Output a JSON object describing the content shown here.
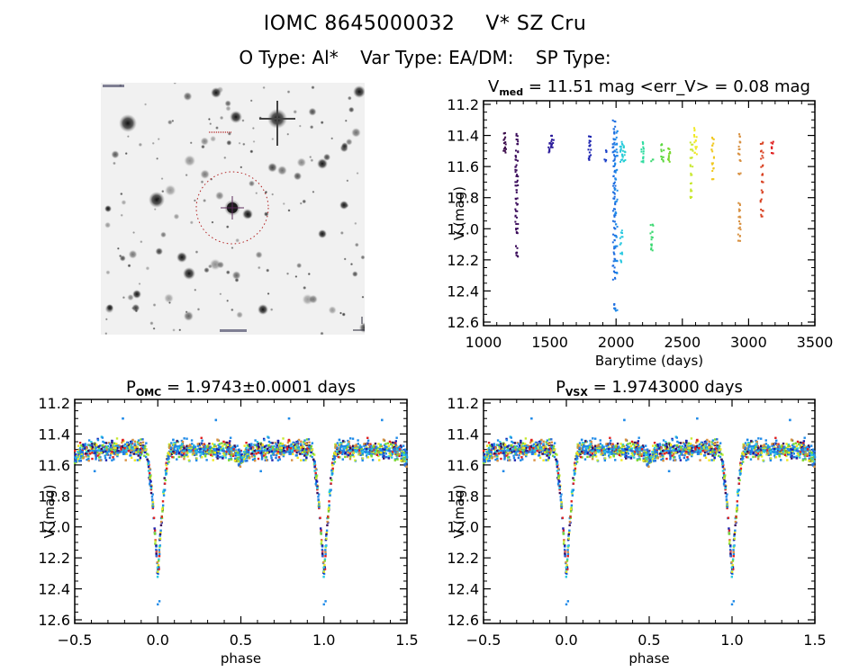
{
  "header": {
    "object_id": "IOMC 8645000032",
    "object_name": "V* SZ Cru",
    "o_type_label": "O Type:",
    "o_type_value": "Al*",
    "var_type_label": "Var Type:",
    "var_type_value": "EA/DM:",
    "sp_type_label": "SP Type:",
    "sp_type_value": ""
  },
  "sky_image": {
    "description": "finding chart",
    "target_marker": "red dotted circle with crosshair",
    "marker_color": "#b22222"
  },
  "chart_data": [
    {
      "id": "timeseries",
      "type": "scatter",
      "title_main": "V",
      "title_sub": "med",
      "title_rest": " = 11.51 mag <err_V> = 0.08 mag",
      "xlabel": "Barytime (days)",
      "ylabel": "V (mag)",
      "xlim": [
        1000,
        3500
      ],
      "ylim": [
        12.6,
        11.2
      ],
      "y_inverted": true,
      "xticks": [
        1000,
        1500,
        2000,
        2500,
        3000,
        3500
      ],
      "yticks": [
        11.2,
        11.4,
        11.6,
        11.8,
        12.0,
        12.2,
        12.4,
        12.6
      ],
      "grid": false,
      "clusters": [
        {
          "t": 1160,
          "mags": [
            11.38,
            11.42,
            11.45,
            11.48,
            11.5
          ],
          "color": "#3a0a4a"
        },
        {
          "t": 1250,
          "mags": [
            11.4,
            11.43,
            11.46,
            11.5,
            11.53,
            11.56,
            11.6,
            11.63,
            11.66,
            11.7,
            11.73,
            11.76,
            11.8,
            11.84,
            11.88,
            11.92,
            11.96,
            12.0,
            12.03,
            12.12,
            12.15,
            12.18
          ],
          "color": "#3a0a5a"
        },
        {
          "t": 1500,
          "mags": [
            11.45,
            11.48,
            11.5
          ],
          "color": "#2a1a9a"
        },
        {
          "t": 1520,
          "mags": [
            11.41,
            11.43,
            11.45,
            11.47
          ],
          "color": "#2a1a9a"
        },
        {
          "t": 1800,
          "mags": [
            11.41,
            11.44,
            11.47,
            11.5,
            11.53,
            11.55
          ],
          "color": "#1a22b0"
        },
        {
          "t": 1920,
          "mags": [
            11.5,
            11.56
          ],
          "color": "#1a40c8"
        },
        {
          "t": 1985,
          "mags": [
            11.31,
            11.35,
            11.38,
            11.42,
            11.45,
            11.48,
            11.5,
            11.53,
            11.56,
            11.6,
            11.63,
            11.67,
            11.7,
            11.73,
            11.77,
            11.8,
            11.84,
            11.88,
            11.92,
            11.96,
            12.0,
            12.04,
            12.08,
            12.12,
            12.16,
            12.2,
            12.24,
            12.28,
            12.32,
            12.48,
            12.51
          ],
          "color": "#1e6ee0"
        },
        {
          "t": 2000,
          "mags": [
            11.38,
            11.42,
            11.46,
            11.5,
            11.54,
            11.58,
            11.63,
            11.68,
            11.75,
            11.82,
            11.9,
            11.98,
            12.05,
            12.12,
            12.2,
            12.28,
            12.52
          ],
          "color": "#1e8ae8"
        },
        {
          "t": 2040,
          "mags": [
            11.45,
            11.48,
            11.5,
            11.53,
            11.56,
            12.02,
            12.06,
            12.1,
            12.16,
            12.21
          ],
          "color": "#28c8e0"
        },
        {
          "t": 2060,
          "mags": [
            11.47,
            11.5,
            11.53,
            11.56
          ],
          "color": "#28d0d0"
        },
        {
          "t": 2200,
          "mags": [
            11.45,
            11.48,
            11.51,
            11.54,
            11.57
          ],
          "color": "#30dca0"
        },
        {
          "t": 2270,
          "mags": [
            11.56,
            11.98,
            12.02,
            12.06,
            12.1,
            12.13
          ],
          "color": "#3ad870"
        },
        {
          "t": 2350,
          "mags": [
            11.46,
            11.5,
            11.53,
            11.56
          ],
          "color": "#5ad840"
        },
        {
          "t": 2400,
          "mags": [
            11.48,
            11.51,
            11.54,
            11.56
          ],
          "color": "#7ad830"
        },
        {
          "t": 2570,
          "mags": [
            11.45,
            11.5,
            11.55,
            11.6,
            11.65,
            11.7,
            11.75,
            11.8
          ],
          "color": "#c8e830"
        },
        {
          "t": 2600,
          "mags": [
            11.36,
            11.4,
            11.44,
            11.48,
            11.52
          ],
          "color": "#f0e820"
        },
        {
          "t": 2730,
          "mags": [
            11.42,
            11.46,
            11.5,
            11.54,
            11.58,
            11.62,
            11.68
          ],
          "color": "#f0c820"
        },
        {
          "t": 2930,
          "mags": [
            11.4,
            11.44,
            11.48,
            11.52,
            11.56,
            11.64,
            11.84,
            11.88,
            11.92,
            11.96,
            12.0,
            12.04,
            12.08
          ],
          "color": "#d89040"
        },
        {
          "t": 3100,
          "mags": [
            11.45,
            11.5,
            11.54,
            11.6,
            11.65,
            11.7,
            11.76,
            11.82,
            11.88,
            11.92
          ],
          "color": "#d84020"
        },
        {
          "t": 3180,
          "mags": [
            11.45,
            11.48,
            11.52
          ],
          "color": "#e02020"
        }
      ]
    },
    {
      "id": "phase_omc",
      "type": "scatter",
      "title_main": "P",
      "title_sub": "OMC",
      "title_rest": " = 1.9743±0.0001 days",
      "xlabel": "phase",
      "ylabel": "V (mag)",
      "xlim": [
        -0.5,
        1.5
      ],
      "ylim": [
        12.6,
        11.2
      ],
      "y_inverted": true,
      "xticks": [
        -0.5,
        0.0,
        0.5,
        1.0,
        1.5
      ],
      "xtick_labels": [
        "−0.5",
        "0.0",
        "0.5",
        "1.0",
        "1.5"
      ],
      "yticks": [
        11.2,
        11.4,
        11.6,
        11.8,
        12.0,
        12.2,
        12.4,
        12.6
      ],
      "grid": false,
      "period_days": 1.9743,
      "period_err_days": 0.0001,
      "model": {
        "baseline_mag": 11.51,
        "scatter_mag": 0.05,
        "primary_min_phase": 0.0,
        "primary_min_mag": 12.32,
        "primary_half_width": 0.075,
        "secondary_phase": 0.5,
        "secondary_depth_mag": 0.06,
        "secondary_half_width": 0.06,
        "outlier_points": [
          [
            0.0,
            12.5
          ],
          [
            0.01,
            12.48
          ],
          [
            -0.21,
            11.3
          ],
          [
            0.79,
            11.3
          ],
          [
            0.35,
            11.31
          ],
          [
            1.35,
            11.31
          ],
          [
            -0.38,
            11.64
          ],
          [
            0.62,
            11.64
          ]
        ]
      },
      "colors": [
        "#1e8ae8",
        "#1e8ae8",
        "#1e8ae8",
        "#2a6ed8",
        "#28c8e0",
        "#f0e820",
        "#d89040",
        "#e02020",
        "#3a0a5a",
        "#1a22b0",
        "#7ad830",
        "#c8e830"
      ]
    },
    {
      "id": "phase_vsx",
      "type": "scatter",
      "title_main": "P",
      "title_sub": "VSX",
      "title_rest": " = 1.9743000 days",
      "xlabel": "phase",
      "ylabel": "V (mag)",
      "xlim": [
        -0.5,
        1.5
      ],
      "ylim": [
        12.6,
        11.2
      ],
      "y_inverted": true,
      "xticks": [
        -0.5,
        0.0,
        0.5,
        1.0,
        1.5
      ],
      "xtick_labels": [
        "−0.5",
        "0.0",
        "0.5",
        "1.0",
        "1.5"
      ],
      "yticks": [
        11.2,
        11.4,
        11.6,
        11.8,
        12.0,
        12.2,
        12.4,
        12.6
      ],
      "grid": false,
      "period_days": 1.9743
    }
  ]
}
